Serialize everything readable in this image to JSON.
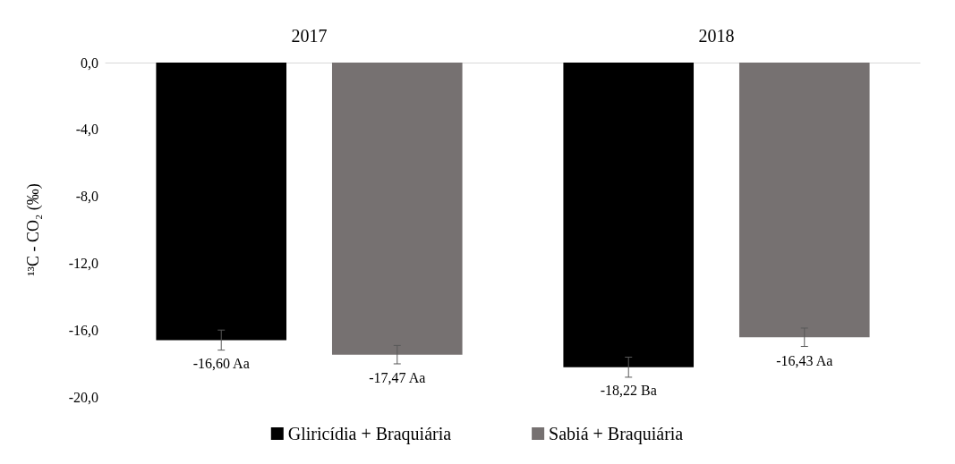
{
  "chart_data": {
    "type": "bar",
    "ylabel": "¹³C - CO₂ (‰)",
    "categories": [
      "2017",
      "2018"
    ],
    "series": [
      {
        "name": "Gliricídia + Braquiária",
        "color": "#000000",
        "values": [
          -16.6,
          -18.22
        ],
        "errors": [
          0.6,
          0.6
        ],
        "value_labels": [
          "-16,60 Aa",
          "-18,22 Ba"
        ]
      },
      {
        "name": "Sabiá + Braquiária",
        "color": "#767171",
        "values": [
          -17.47,
          -16.43
        ],
        "errors": [
          0.55,
          0.55
        ],
        "value_labels": [
          "-17,47 Aa",
          "-16,43 Aa"
        ]
      }
    ],
    "ylim": [
      -20,
      0
    ],
    "yticks": [
      {
        "value": -20,
        "label": "-20,0"
      },
      {
        "value": -16,
        "label": "-16,0"
      },
      {
        "value": -12,
        "label": "-12,0"
      },
      {
        "value": -8,
        "label": "-8,0"
      },
      {
        "value": -4,
        "label": "-4,0"
      },
      {
        "value": 0,
        "label": "0,0"
      }
    ],
    "grid": false,
    "legend": "bottom"
  }
}
